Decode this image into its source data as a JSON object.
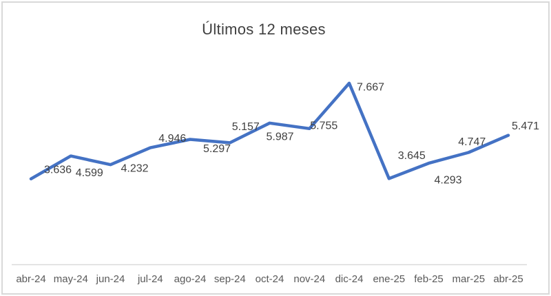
{
  "chart_data": {
    "type": "line",
    "title": "Últimos 12 meses",
    "categories": [
      "abr-24",
      "may-24",
      "jun-24",
      "jul-24",
      "ago-24",
      "sep-24",
      "oct-24",
      "nov-24",
      "dic-24",
      "ene-25",
      "feb-25",
      "mar-25",
      "abr-25"
    ],
    "values": [
      3636,
      4599,
      4232,
      4946,
      5297,
      5157,
      5987,
      5755,
      7667,
      3645,
      4293,
      4747,
      5471
    ],
    "value_labels": [
      "3.636",
      "4.599",
      "4.232",
      "4.946",
      "5.297",
      "5.157",
      "5.987",
      "5.755",
      "7.667",
      "3.645",
      "4.293",
      "4.747",
      "5.471"
    ],
    "xlabel": "",
    "ylabel": "",
    "ylim": [
      0,
      9000
    ],
    "grid": false,
    "legend": false,
    "y_axis_visible": false,
    "line_color": "#4472C4",
    "axis_line_color": "#d9d9d9",
    "data_label_color": "#3f3f3f",
    "tick_label_color": "#595959",
    "title_color": "#404040",
    "frame_border_color": "#d9d9d9",
    "background_color": "#ffffff"
  }
}
